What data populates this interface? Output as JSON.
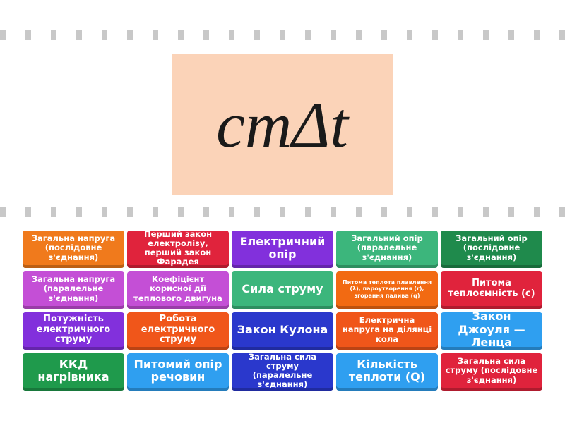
{
  "prompt": {
    "formula": "cmΔt",
    "background": "#fbd3b8"
  },
  "tiles": [
    {
      "label": "Загальна напруга (послідовне з'єднання)",
      "color": "#f07a1c"
    },
    {
      "label": "Перший закон електролізу, перший закон Фарадея",
      "color": "#e0233c"
    },
    {
      "label": "Електричний опір",
      "color": "#8230dc"
    },
    {
      "label": "Загальний опір (паралельне з'єднання)",
      "color": "#3cb67c"
    },
    {
      "label": "Загальний опір (послідовне з'єднання)",
      "color": "#1f8a4c"
    },
    {
      "label": "Загальна напруга (паралельне з'єднання)",
      "color": "#c44fd6"
    },
    {
      "label": "Коефіцієнт корисної дії теплового двигуна",
      "color": "#c44fd6"
    },
    {
      "label": "Сила струму",
      "color": "#3cb67c"
    },
    {
      "label": "Питома теплота плавлення (λ), пароутворення (r), згорання палива (q)",
      "color": "#f26a12"
    },
    {
      "label": "Питома теплоємність (c)",
      "color": "#e0233c"
    },
    {
      "label": "Потужність електричного струму",
      "color": "#8230dc"
    },
    {
      "label": "Робота електричного струму",
      "color": "#f0561a"
    },
    {
      "label": "Закон Кулона",
      "color": "#2a38cc"
    },
    {
      "label": "Електрична напруга на ділянці кола",
      "color": "#f0561a"
    },
    {
      "label": "Закон Джоуля — Ленца",
      "color": "#2f9ff0"
    },
    {
      "label": "ККД нагрівника",
      "color": "#1f9a4c"
    },
    {
      "label": "Питомий опір речовин",
      "color": "#2f9ff0"
    },
    {
      "label": "Загальна сила струму (паралельне з'єднання)",
      "color": "#2a38cc"
    },
    {
      "label": "Кількість теплоти (Q)",
      "color": "#2f9ff0"
    },
    {
      "label": "Загальна сила струму (послідовне з'єднання)",
      "color": "#e0233c"
    }
  ]
}
